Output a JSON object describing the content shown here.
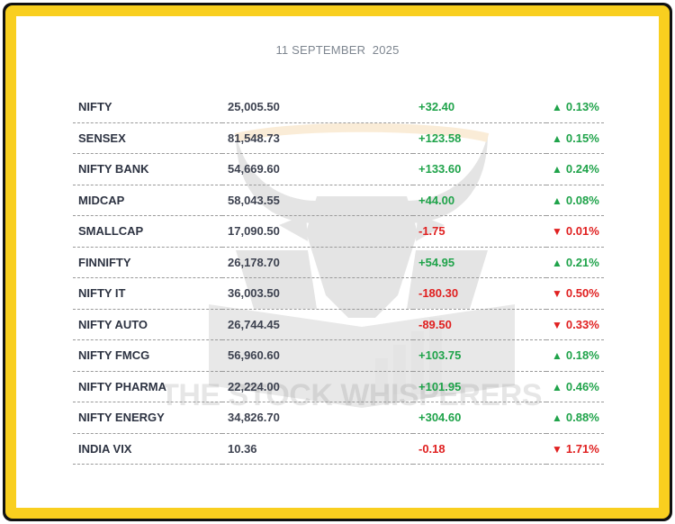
{
  "date": "11 SEPTEMBER  2025",
  "watermark": {
    "text": "THE STOCK WHISPERERS",
    "icon": "bull-logo-icon"
  },
  "colors": {
    "border_outer": "#111111",
    "border_inner": "#f9cf1f",
    "positive": "#1fa34a",
    "negative": "#e02020"
  },
  "indices": [
    {
      "name": "NIFTY",
      "value": "25,005.50",
      "change": "+32.40",
      "arrow": "▲",
      "percent": "0.13%",
      "direction": "up"
    },
    {
      "name": "SENSEX",
      "value": "81,548.73",
      "change": "+123.58",
      "arrow": "▲",
      "percent": "0.15%",
      "direction": "up"
    },
    {
      "name": "NIFTY BANK",
      "value": "54,669.60",
      "change": "+133.60",
      "arrow": "▲",
      "percent": "0.24%",
      "direction": "up"
    },
    {
      "name": "MIDCAP",
      "value": "58,043.55",
      "change": "+44.00",
      "arrow": "▲",
      "percent": "0.08%",
      "direction": "up"
    },
    {
      "name": "SMALLCAP",
      "value": "17,090.50",
      "change": "-1.75",
      "arrow": "▼",
      "percent": "0.01%",
      "direction": "down"
    },
    {
      "name": "FINNIFTY",
      "value": "26,178.70",
      "change": "+54.95",
      "arrow": "▲",
      "percent": "0.21%",
      "direction": "up"
    },
    {
      "name": "NIFTY IT",
      "value": "36,003.50",
      "change": "-180.30",
      "arrow": "▼",
      "percent": "0.50%",
      "direction": "down"
    },
    {
      "name": "NIFTY AUTO",
      "value": "26,744.45",
      "change": "-89.50",
      "arrow": "▼",
      "percent": "0.33%",
      "direction": "down"
    },
    {
      "name": "NIFTY FMCG",
      "value": "56,960.60",
      "change": "+103.75",
      "arrow": "▲",
      "percent": "0.18%",
      "direction": "up"
    },
    {
      "name": "NIFTY PHARMA",
      "value": "22,224.00",
      "change": "+101.95",
      "arrow": "▲",
      "percent": "0.46%",
      "direction": "up"
    },
    {
      "name": "NIFTY ENERGY",
      "value": "34,826.70",
      "change": "+304.60",
      "arrow": "▲",
      "percent": "0.88%",
      "direction": "up"
    },
    {
      "name": "INDIA VIX",
      "value": "10.36",
      "change": "-0.18",
      "arrow": "▼",
      "percent": "1.71%",
      "direction": "down"
    }
  ]
}
